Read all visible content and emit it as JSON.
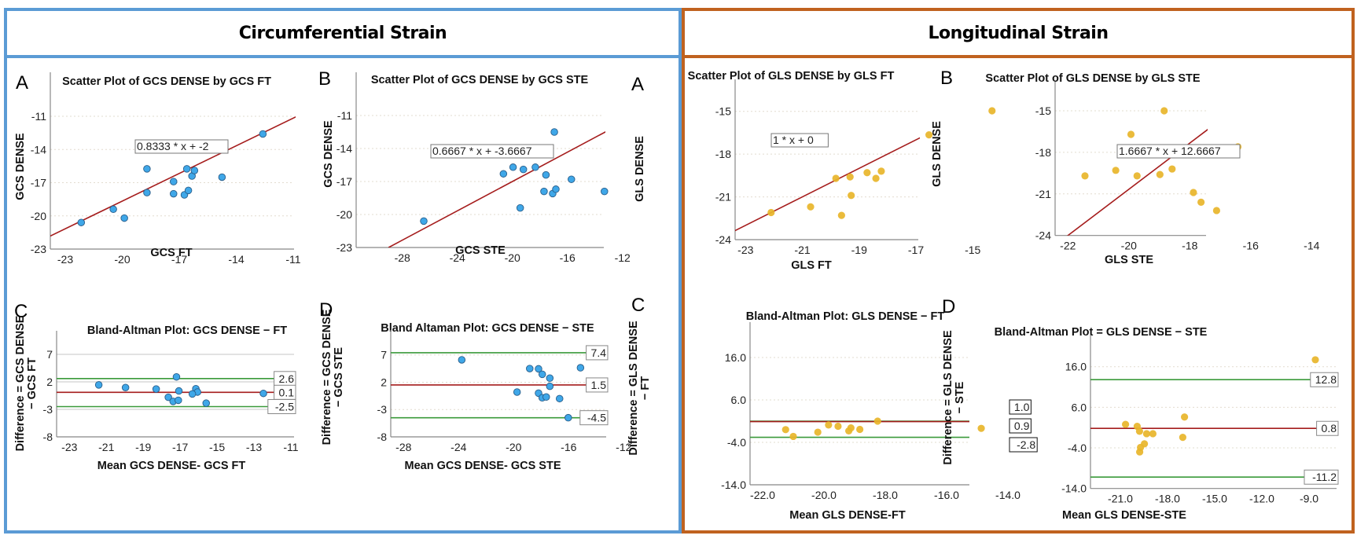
{
  "sections": {
    "left": {
      "title": "Circumferential Strain",
      "border_color": "#5b9bd5",
      "point_color": "#3fa7e8"
    },
    "right": {
      "title": "Longitudinal Strain",
      "border_color": "#c0621f",
      "point_color": "#e8b52a"
    }
  },
  "colors": {
    "fit_line": "#a51c1c",
    "mean_line": "#a51c1c",
    "loa_line": "#3a9a3a",
    "grid": "#e2dccf",
    "axis": "#888888"
  },
  "chart_data": [
    {
      "id": "gcs-a",
      "panel": "A",
      "type": "scatter",
      "title": "Scatter Plot of GCS DENSE by GCS FT",
      "xlabel": "GCS FT",
      "ylabel": "GCS DENSE",
      "xlim": [
        -24,
        -9.5
      ],
      "ylim": [
        -23,
        -8
      ],
      "xticks": [
        -23,
        -20,
        -17,
        -14,
        -11
      ],
      "yticks": [
        -23,
        -20,
        -17,
        -14,
        -11
      ],
      "fit": {
        "slope": 0.8333,
        "intercept": -2,
        "label": "0.8333 * x + -2"
      },
      "points": [
        [
          -22.16,
          -20.6
        ],
        [
          -20.47,
          -19.4
        ],
        [
          -19.89,
          -20.2
        ],
        [
          -18.7,
          -15.75
        ],
        [
          -18.7,
          -17.9
        ],
        [
          -17.3,
          -16.9
        ],
        [
          -17.3,
          -18.0
        ],
        [
          -16.73,
          -18.1
        ],
        [
          -16.52,
          -17.7
        ],
        [
          -16.6,
          -15.75
        ],
        [
          -16.33,
          -16.4
        ],
        [
          -16.2,
          -15.9
        ],
        [
          -14.75,
          -16.5
        ],
        [
          -12.6,
          -12.6
        ]
      ]
    },
    {
      "id": "gcs-b",
      "panel": "B",
      "type": "scatter",
      "title": "Scatter Plot of GCS DENSE by GCS STE",
      "xlabel": "GCS STE",
      "ylabel": "GCS DENSE",
      "xlim": [
        -29,
        -9
      ],
      "ylim": [
        -23,
        -8
      ],
      "xticks": [
        -28,
        -24,
        -20,
        -16,
        -12
      ],
      "yticks": [
        -23,
        -20,
        -17,
        -14,
        -11
      ],
      "fit": {
        "slope": 0.6667,
        "intercept": -3.6667,
        "label": "0.6667 * x + -3.6667"
      },
      "points": [
        [
          -26.44,
          -20.6
        ],
        [
          -20.65,
          -16.3
        ],
        [
          -19.95,
          -15.7
        ],
        [
          -19.2,
          -15.9
        ],
        [
          -18.33,
          -15.7
        ],
        [
          -19.43,
          -19.4
        ],
        [
          -17.7,
          -17.9
        ],
        [
          -17.56,
          -16.4
        ],
        [
          -17.07,
          -18.1
        ],
        [
          -16.84,
          -17.7
        ],
        [
          -16.95,
          -12.5
        ],
        [
          -15.71,
          -16.8
        ],
        [
          -13.31,
          -17.9
        ]
      ]
    },
    {
      "id": "gcs-c",
      "panel": "C",
      "type": "scatter",
      "subtype": "bland-altman",
      "title": "Bland-Altman Plot: GCS DENSE − FT",
      "xlabel": "Mean GCS DENSE- GCS FT",
      "ylabel": "Difference = GCS DENSE − GCS FT",
      "xlim": [
        -24,
        -9.5
      ],
      "ylim": [
        -8,
        10
      ],
      "xticks": [
        -23,
        -21,
        -19,
        -17,
        -15,
        -13,
        -11
      ],
      "yticks": [
        -8,
        -3,
        2,
        7
      ],
      "ytick_labels": [
        "-8",
        "-3",
        "2",
        "7"
      ],
      "mean": 0.1,
      "upper_loa": 2.6,
      "lower_loa": -2.5,
      "line_labels": [
        "2.6",
        "0.1",
        "-2.5"
      ],
      "points": [
        [
          -21.41,
          1.45
        ],
        [
          -19.96,
          0.97
        ],
        [
          -18.3,
          0.7
        ],
        [
          -17.2,
          2.9
        ],
        [
          -17.07,
          0.35
        ],
        [
          -17.64,
          -0.8
        ],
        [
          -17.38,
          -1.55
        ],
        [
          -17.1,
          -1.35
        ],
        [
          -16.15,
          0.75
        ],
        [
          -16.06,
          0.15
        ],
        [
          -16.34,
          -0.2
        ],
        [
          -15.59,
          -1.87
        ],
        [
          -12.49,
          -0.1
        ]
      ]
    },
    {
      "id": "gcs-d",
      "panel": "D",
      "type": "scatter",
      "subtype": "bland-altman",
      "title": "Bland Altaman Plot: GCS DENSE − STE",
      "xlabel": "Mean GCS DENSE- GCS STE",
      "ylabel": "Difference = GCS DENSE − GCS STE",
      "xlim": [
        -29,
        -9
      ],
      "ylim": [
        -8,
        10
      ],
      "xticks": [
        -28,
        -24,
        -20,
        -16,
        -12
      ],
      "yticks": [
        -8,
        -3,
        2,
        7
      ],
      "ytick_labels": [
        "-8",
        "-3",
        "2",
        "7"
      ],
      "mean": 1.5,
      "upper_loa": 7.4,
      "lower_loa": -4.5,
      "line_labels": [
        "7.4",
        "1.5",
        "-4.5"
      ],
      "points": [
        [
          -23.77,
          6.1
        ],
        [
          -18.83,
          4.5
        ],
        [
          -18.19,
          4.45
        ],
        [
          -17.92,
          3.45
        ],
        [
          -17.37,
          2.75
        ],
        [
          -17.37,
          1.25
        ],
        [
          -19.75,
          0.2
        ],
        [
          -18.19,
          0.0
        ],
        [
          -17.92,
          -0.85
        ],
        [
          -17.63,
          -0.7
        ],
        [
          -16.66,
          -1.0
        ],
        [
          -15.14,
          4.65
        ],
        [
          -16.03,
          -4.5
        ]
      ]
    },
    {
      "id": "gls-a",
      "panel": "A",
      "type": "scatter",
      "title": "Scatter Plot of GLS DENSE by GLS FT",
      "xlabel": "GLS FT",
      "ylabel": "GLS DENSE",
      "xlim": [
        -23.5,
        -13.8
      ],
      "ylim": [
        -24,
        -13
      ],
      "xticks": [
        -23,
        -21,
        -19,
        -17,
        -15
      ],
      "yticks": [
        -24,
        -21,
        -18,
        -15
      ],
      "fit": {
        "slope": 1,
        "intercept": 0,
        "label": "1 * x + 0"
      },
      "points": [
        [
          -22.1,
          -22.1
        ],
        [
          -20.71,
          -21.7
        ],
        [
          -19.82,
          -19.7
        ],
        [
          -19.32,
          -19.6
        ],
        [
          -19.28,
          -20.9
        ],
        [
          -19.62,
          -22.3
        ],
        [
          -18.72,
          -19.3
        ],
        [
          -18.41,
          -19.7
        ],
        [
          -18.22,
          -19.2
        ],
        [
          -16.54,
          -16.65
        ],
        [
          -14.32,
          -14.96
        ]
      ]
    },
    {
      "id": "gls-b",
      "panel": "B",
      "type": "scatter",
      "title": "Scatter Plot of GLS DENSE by GLS STE",
      "xlabel": "GLS STE",
      "ylabel": "GLS DENSE",
      "xlim": [
        -22.6,
        -13.6
      ],
      "ylim": [
        -24,
        -13
      ],
      "xticks": [
        -22,
        -20,
        -18,
        -16,
        -14
      ],
      "yticks": [
        -24,
        -21,
        -18,
        -15
      ],
      "fit": {
        "slope": 1.6667,
        "intercept": 12.6667,
        "label": "1.6667 * x + 12.6667"
      },
      "points": [
        [
          -21.44,
          -19.7
        ],
        [
          -20.43,
          -19.3
        ],
        [
          -19.93,
          -16.7
        ],
        [
          -19.73,
          -19.7
        ],
        [
          -18.84,
          -15.0
        ],
        [
          -18.98,
          -19.6
        ],
        [
          -18.58,
          -19.2
        ],
        [
          -17.88,
          -20.9
        ],
        [
          -17.63,
          -21.6
        ],
        [
          -17.12,
          -22.2
        ],
        [
          -16.42,
          -17.6
        ]
      ]
    },
    {
      "id": "gls-c",
      "panel": "C",
      "type": "scatter",
      "subtype": "bland-altman",
      "title": "Bland-Altman Plot: GLS DENSE − FT",
      "xlabel": "Mean GLS DENSE-FT",
      "ylabel": "Difference = GLS DENSE − FT",
      "xlim": [
        -22.4,
        -13.8
      ],
      "ylim": [
        -14,
        22
      ],
      "xticks": [
        -22,
        -20,
        -18,
        -16,
        -14
      ],
      "yticks": [
        -14,
        -4,
        6,
        16
      ],
      "ytick_labels": [
        "-14.0",
        "-4.0",
        "6.0",
        "16.0"
      ],
      "xtick_labels": [
        "-22.0",
        "-20.0",
        "-18.0",
        "-16.0",
        "-14.0"
      ],
      "mean": 0.9,
      "upper_loa": 1.0,
      "lower_loa": -2.8,
      "line_labels": [
        "1.0",
        "0.9",
        "-2.8"
      ],
      "points": [
        [
          -21.25,
          -1.0
        ],
        [
          -21.0,
          -2.6
        ],
        [
          -20.2,
          -1.6
        ],
        [
          -19.85,
          0.1
        ],
        [
          -19.54,
          -0.2
        ],
        [
          -19.19,
          -1.3
        ],
        [
          -19.12,
          -0.6
        ],
        [
          -18.83,
          -0.95
        ],
        [
          -18.25,
          1.0
        ],
        [
          -14.87,
          -0.7
        ]
      ]
    },
    {
      "id": "gls-d",
      "panel": "D",
      "type": "scatter",
      "subtype": "bland-altman",
      "title": "Bland-Altman Plot = GLS DENSE − STE",
      "xlabel": "Mean GLS DENSE-STE",
      "ylabel": "Difference = GLS DENSE − STE",
      "xlim": [
        -23,
        -7.5
      ],
      "ylim": [
        -14,
        22
      ],
      "xticks": [
        -21,
        -18,
        -15,
        -12,
        -9
      ],
      "yticks": [
        -14,
        -4,
        6,
        16
      ],
      "ytick_labels": [
        "-14.0",
        "-4.0",
        "6.0",
        "16.0"
      ],
      "xtick_labels": [
        "-21.0",
        "-18.0",
        "-15.0",
        "-12.0",
        "-9.0"
      ],
      "mean": 0.8,
      "upper_loa": 12.8,
      "lower_loa": -11.2,
      "line_labels": [
        "12.8",
        "0.8",
        "-11.2"
      ],
      "points": [
        [
          -20.67,
          1.8
        ],
        [
          -19.93,
          1.3
        ],
        [
          -19.78,
          0.1
        ],
        [
          -19.33,
          -0.5
        ],
        [
          -18.93,
          -0.5
        ],
        [
          -19.47,
          -3.0
        ],
        [
          -19.72,
          -3.9
        ],
        [
          -19.77,
          -5.0
        ],
        [
          -16.92,
          3.6
        ],
        [
          -17.03,
          -1.4
        ],
        [
          -8.6,
          17.7
        ]
      ]
    }
  ]
}
